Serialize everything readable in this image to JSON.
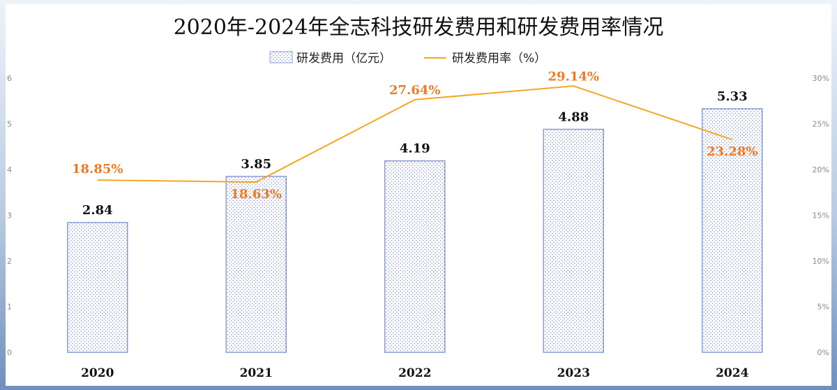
{
  "chart_data": {
    "type": "bar",
    "title": "2020年-2024年全志科技研发费用和研发费用率情况",
    "categories": [
      "2020",
      "2021",
      "2022",
      "2023",
      "2024"
    ],
    "series": [
      {
        "name": "研发费用（亿元）",
        "type": "bar",
        "axis": "left",
        "values": [
          2.84,
          3.85,
          4.19,
          4.88,
          5.33
        ],
        "labels": [
          "2.84",
          "3.85",
          "4.19",
          "4.88",
          "5.33"
        ],
        "color": "#8a9bd4"
      },
      {
        "name": "研发费用率（%）",
        "type": "line",
        "axis": "right",
        "values": [
          18.85,
          18.63,
          27.64,
          29.14,
          23.28
        ],
        "labels": [
          "18.85%",
          "18.63%",
          "27.64%",
          "29.14%",
          "23.28%"
        ],
        "color": "#f5a623"
      }
    ],
    "y_left": {
      "ylim": [
        0,
        6
      ],
      "ticks": [
        "0",
        "1",
        "2",
        "3",
        "4",
        "5",
        "6"
      ]
    },
    "y_right": {
      "ylim": [
        0,
        30
      ],
      "ticks": [
        "0%",
        "5%",
        "10%",
        "15%",
        "20%",
        "25%",
        "30%"
      ]
    },
    "legend": "top-center",
    "grid": false,
    "line_label_color": "#f07a22"
  }
}
